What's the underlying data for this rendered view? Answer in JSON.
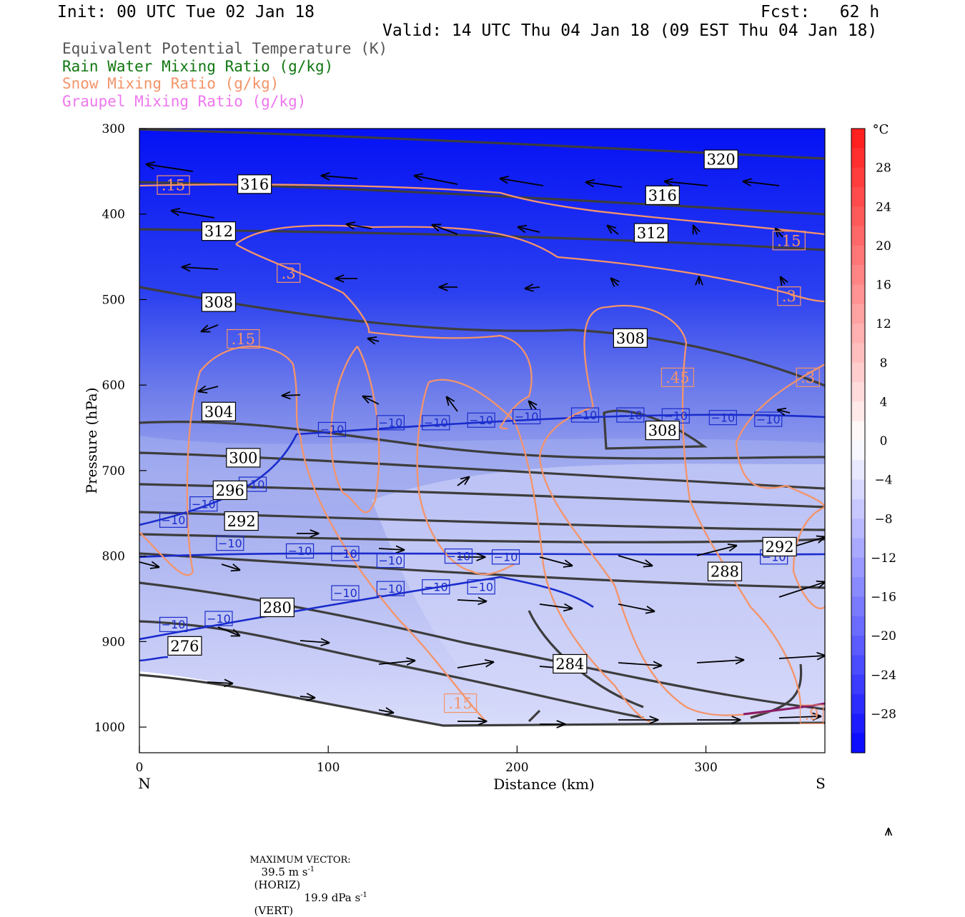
{
  "header": {
    "init": "Init: 00 UTC Tue 02 Jan 18",
    "fcst": "Fcst:   62 h",
    "valid": "Valid: 14 UTC Thu 04 Jan 18 (09 EST Thu 04 Jan 18)"
  },
  "legend": [
    "Equivalent Potential Temperature (K)",
    "Rain Water Mixing Ratio (g/kg)",
    "Snow Mixing Ratio (g/kg)",
    "Graupel Mixing Ratio (g/kg)"
  ],
  "colors": {
    "theta_e": "#3d3d3d",
    "rain": "#117711",
    "snow": "#f4946a",
    "graupel": "#ee77ee",
    "isotherm": "#1a2ccc"
  },
  "footer": {
    "label": "MAXIMUM VECTOR:",
    "horiz_value": "39.5 m s",
    "horiz_unit": "(HORIZ)",
    "vert_value": "19.9 dPa s",
    "vert_unit": "(VERT)",
    "exponent": "-1"
  },
  "chart_data": {
    "type": "cross-section",
    "xlabel": "Distance (km)",
    "ylabel": "Pressure (hPa)",
    "xlim": [
      0,
      363
    ],
    "ylim": [
      1030,
      300
    ],
    "x_ticks": [
      0,
      100,
      200,
      300
    ],
    "y_ticks": [
      300,
      400,
      500,
      600,
      700,
      800,
      900,
      1000
    ],
    "x_end_labels": {
      "left": "N",
      "right": "S"
    },
    "colorbar": {
      "unit": "°C",
      "ticks": [
        28,
        24,
        20,
        16,
        12,
        8,
        4,
        0,
        -4,
        -8,
        -12,
        -16,
        -20,
        -24,
        -28
      ],
      "range": [
        -32,
        32
      ]
    },
    "theta_e_labels": [
      {
        "v": "320",
        "x": 308,
        "p": 336
      },
      {
        "v": "316",
        "x": 61,
        "p": 365
      },
      {
        "v": "316",
        "x": 277,
        "p": 378
      },
      {
        "v": "312",
        "x": 42,
        "p": 420
      },
      {
        "v": "312",
        "x": 271,
        "p": 422
      },
      {
        "v": "308",
        "x": 42,
        "p": 503
      },
      {
        "v": "308",
        "x": 260,
        "p": 545
      },
      {
        "v": "308",
        "x": 277,
        "p": 653
      },
      {
        "v": "304",
        "x": 42,
        "p": 631
      },
      {
        "v": "300",
        "x": 55,
        "p": 685
      },
      {
        "v": "296",
        "x": 48,
        "p": 723
      },
      {
        "v": "292",
        "x": 54,
        "p": 759
      },
      {
        "v": "292",
        "x": 339,
        "p": 789
      },
      {
        "v": "288",
        "x": 310,
        "p": 818
      },
      {
        "v": "284",
        "x": 228,
        "p": 926
      },
      {
        "v": "280",
        "x": 73,
        "p": 860
      },
      {
        "v": "276",
        "x": 24,
        "p": 905
      }
    ],
    "snow_labels": [
      {
        "v": ".15",
        "x": 18,
        "p": 366
      },
      {
        "v": ".15",
        "x": 344,
        "p": 431
      },
      {
        "v": ".3",
        "x": 79,
        "p": 469
      },
      {
        "v": ".3",
        "x": 344,
        "p": 496
      },
      {
        "v": ".15",
        "x": 55,
        "p": 546
      },
      {
        "v": ".45",
        "x": 285,
        "p": 591
      },
      {
        "v": ".3",
        "x": 354,
        "p": 591
      },
      {
        "v": ".15",
        "x": 170,
        "p": 972
      },
      {
        "v": ".9",
        "x": 356,
        "p": 985
      }
    ],
    "isotherm_labels": [
      {
        "v": "−10",
        "x": 102,
        "p": 652
      },
      {
        "v": "−10",
        "x": 133,
        "p": 644
      },
      {
        "v": "−10",
        "x": 157,
        "p": 644
      },
      {
        "v": "−10",
        "x": 181,
        "p": 641
      },
      {
        "v": "−10",
        "x": 205,
        "p": 637
      },
      {
        "v": "−10",
        "x": 236,
        "p": 635
      },
      {
        "v": "−10",
        "x": 260,
        "p": 635
      },
      {
        "v": "−10",
        "x": 284,
        "p": 636
      },
      {
        "v": "−10",
        "x": 309,
        "p": 638
      },
      {
        "v": "−10",
        "x": 333,
        "p": 640
      },
      {
        "v": "−10",
        "x": 60,
        "p": 716
      },
      {
        "v": "−10",
        "x": 34,
        "p": 739
      },
      {
        "v": "−10",
        "x": 18,
        "p": 758
      },
      {
        "v": "−10",
        "x": 48,
        "p": 785
      },
      {
        "v": "−10",
        "x": 85,
        "p": 794
      },
      {
        "v": "−10",
        "x": 109,
        "p": 797
      },
      {
        "v": "−10",
        "x": 133,
        "p": 805
      },
      {
        "v": "−10",
        "x": 169,
        "p": 800
      },
      {
        "v": "−10",
        "x": 194,
        "p": 801
      },
      {
        "v": "−10",
        "x": 133,
        "p": 838
      },
      {
        "v": "−10",
        "x": 157,
        "p": 836
      },
      {
        "v": "−10",
        "x": 181,
        "p": 836
      },
      {
        "v": "−10",
        "x": 109,
        "p": 843
      },
      {
        "v": "−10",
        "x": 42,
        "p": 873
      },
      {
        "v": "−10",
        "x": 18,
        "p": 880
      },
      {
        "v": "−10",
        "x": 336,
        "p": 801
      }
    ]
  }
}
